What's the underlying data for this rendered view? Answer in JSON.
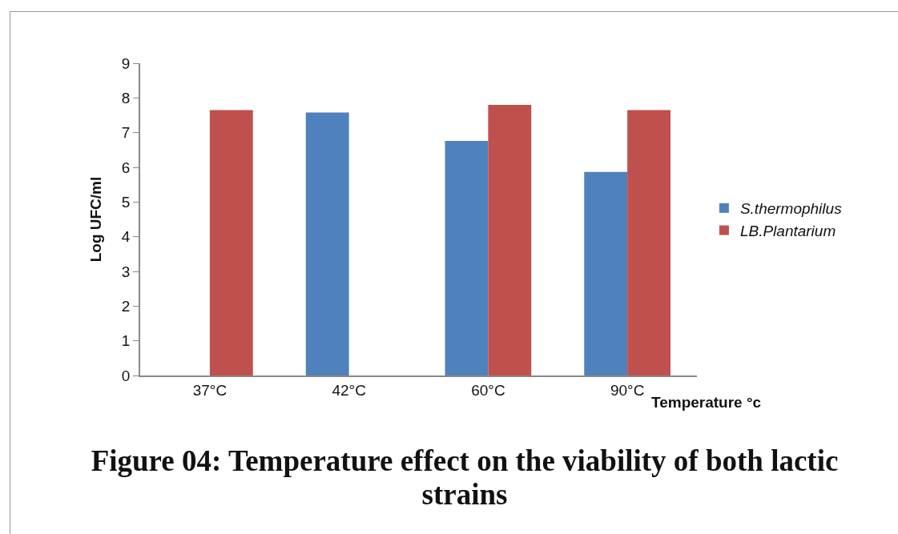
{
  "chart_data": {
    "type": "bar",
    "title": "Figure 04: Temperature effect on the viability of both lactic strains",
    "xlabel": "Temperature °c",
    "ylabel": "Log UFC/ml",
    "categories": [
      "37°C",
      "42°C",
      "60°C",
      "90°C"
    ],
    "series": [
      {
        "name": "S.thermophilus",
        "color": "#4f81bd",
        "values": [
          null,
          7.58,
          6.76,
          5.87
        ]
      },
      {
        "name": "LB.Plantarium",
        "color": "#c0504d",
        "values": [
          7.65,
          null,
          7.8,
          7.65
        ]
      }
    ],
    "ylim": [
      0,
      9
    ],
    "yticks": [
      0,
      1,
      2,
      3,
      4,
      5,
      6,
      7,
      8,
      9
    ],
    "grid": false,
    "legend": "right"
  }
}
